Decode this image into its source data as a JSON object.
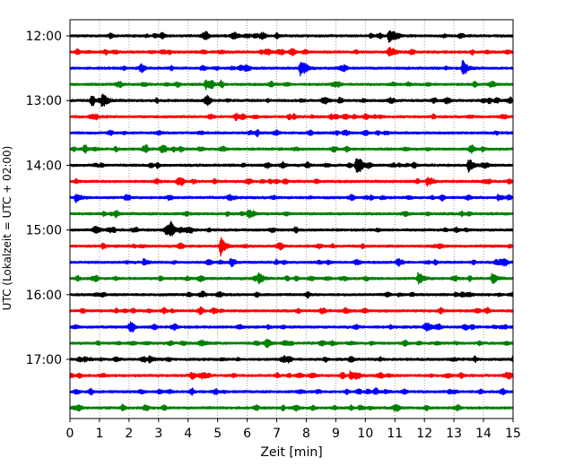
{
  "chart_data": {
    "type": "line",
    "chart_kind": "helicorder",
    "xlabel": "Zeit  [min]",
    "ylabel": "UTC (Lokalzeit = UTC + 02:00)",
    "xlim": [
      0,
      15
    ],
    "x_ticks": [
      "0",
      "1",
      "2",
      "3",
      "4",
      "5",
      "6",
      "7",
      "8",
      "9",
      "10",
      "11",
      "12",
      "13",
      "14",
      "15"
    ],
    "y_ticks": [
      "12:00",
      "13:00",
      "14:00",
      "15:00",
      "16:00",
      "17:00"
    ],
    "grid": "vertical dotted lines at each minute",
    "trace_colors": [
      "#000000",
      "#ff0000",
      "#0000ff",
      "#008000"
    ],
    "traces": [
      {
        "start": "12:00",
        "color": "#000000",
        "events": [
          {
            "t": 10.8,
            "amp": 2.2
          }
        ]
      },
      {
        "start": "12:15",
        "color": "#ff0000",
        "events": [
          {
            "t": 10.8,
            "amp": 1.8
          }
        ]
      },
      {
        "start": "12:30",
        "color": "#0000ff",
        "events": [
          {
            "t": 7.8,
            "amp": 2.4
          },
          {
            "t": 13.3,
            "amp": 2.8
          }
        ]
      },
      {
        "start": "12:45",
        "color": "#008000",
        "events": [
          {
            "t": 4.6,
            "amp": 1.6
          }
        ]
      },
      {
        "start": "13:00",
        "color": "#000000",
        "events": [
          {
            "t": 1.1,
            "amp": 2.8
          }
        ]
      },
      {
        "start": "13:15",
        "color": "#ff0000",
        "events": []
      },
      {
        "start": "13:30",
        "color": "#0000ff",
        "events": []
      },
      {
        "start": "13:45",
        "color": "#008000",
        "events": []
      },
      {
        "start": "14:00",
        "color": "#000000",
        "events": [
          {
            "t": 9.7,
            "amp": 3.0
          },
          {
            "t": 13.5,
            "amp": 1.8
          }
        ]
      },
      {
        "start": "14:15",
        "color": "#ff0000",
        "events": [
          {
            "t": 12.1,
            "amp": 1.3
          }
        ]
      },
      {
        "start": "14:30",
        "color": "#0000ff",
        "events": [
          {
            "t": 0.2,
            "amp": 1.4
          },
          {
            "t": 14.5,
            "amp": 1.0
          }
        ]
      },
      {
        "start": "14:45",
        "color": "#008000",
        "events": []
      },
      {
        "start": "15:00",
        "color": "#000000",
        "events": [
          {
            "t": 3.4,
            "amp": 2.2
          }
        ]
      },
      {
        "start": "15:15",
        "color": "#ff0000",
        "events": [
          {
            "t": 5.1,
            "amp": 3.4
          }
        ]
      },
      {
        "start": "15:30",
        "color": "#0000ff",
        "events": [
          {
            "t": 2.5,
            "amp": 1.0
          }
        ]
      },
      {
        "start": "15:45",
        "color": "#008000",
        "events": [
          {
            "t": 6.4,
            "amp": 2.0
          },
          {
            "t": 11.8,
            "amp": 2.4
          },
          {
            "t": 14.3,
            "amp": 1.4
          }
        ]
      },
      {
        "start": "16:00",
        "color": "#000000",
        "events": []
      },
      {
        "start": "16:15",
        "color": "#ff0000",
        "events": [
          {
            "t": 9.3,
            "amp": 1.0
          }
        ]
      },
      {
        "start": "16:30",
        "color": "#0000ff",
        "events": []
      },
      {
        "start": "16:45",
        "color": "#008000",
        "events": [
          {
            "t": 4.5,
            "amp": 0.8
          }
        ]
      },
      {
        "start": "17:00",
        "color": "#000000",
        "events": [
          {
            "t": 2.7,
            "amp": 1.0
          },
          {
            "t": 15.0,
            "amp": 1.0
          }
        ]
      },
      {
        "start": "17:15",
        "color": "#ff0000",
        "events": [
          {
            "t": 9.5,
            "amp": 1.4
          }
        ]
      },
      {
        "start": "17:30",
        "color": "#0000ff",
        "events": [
          {
            "t": 3.0,
            "amp": 0.7
          }
        ]
      },
      {
        "start": "17:45",
        "color": "#008000",
        "events": [
          {
            "t": 9.8,
            "amp": 0.8
          }
        ]
      }
    ]
  }
}
